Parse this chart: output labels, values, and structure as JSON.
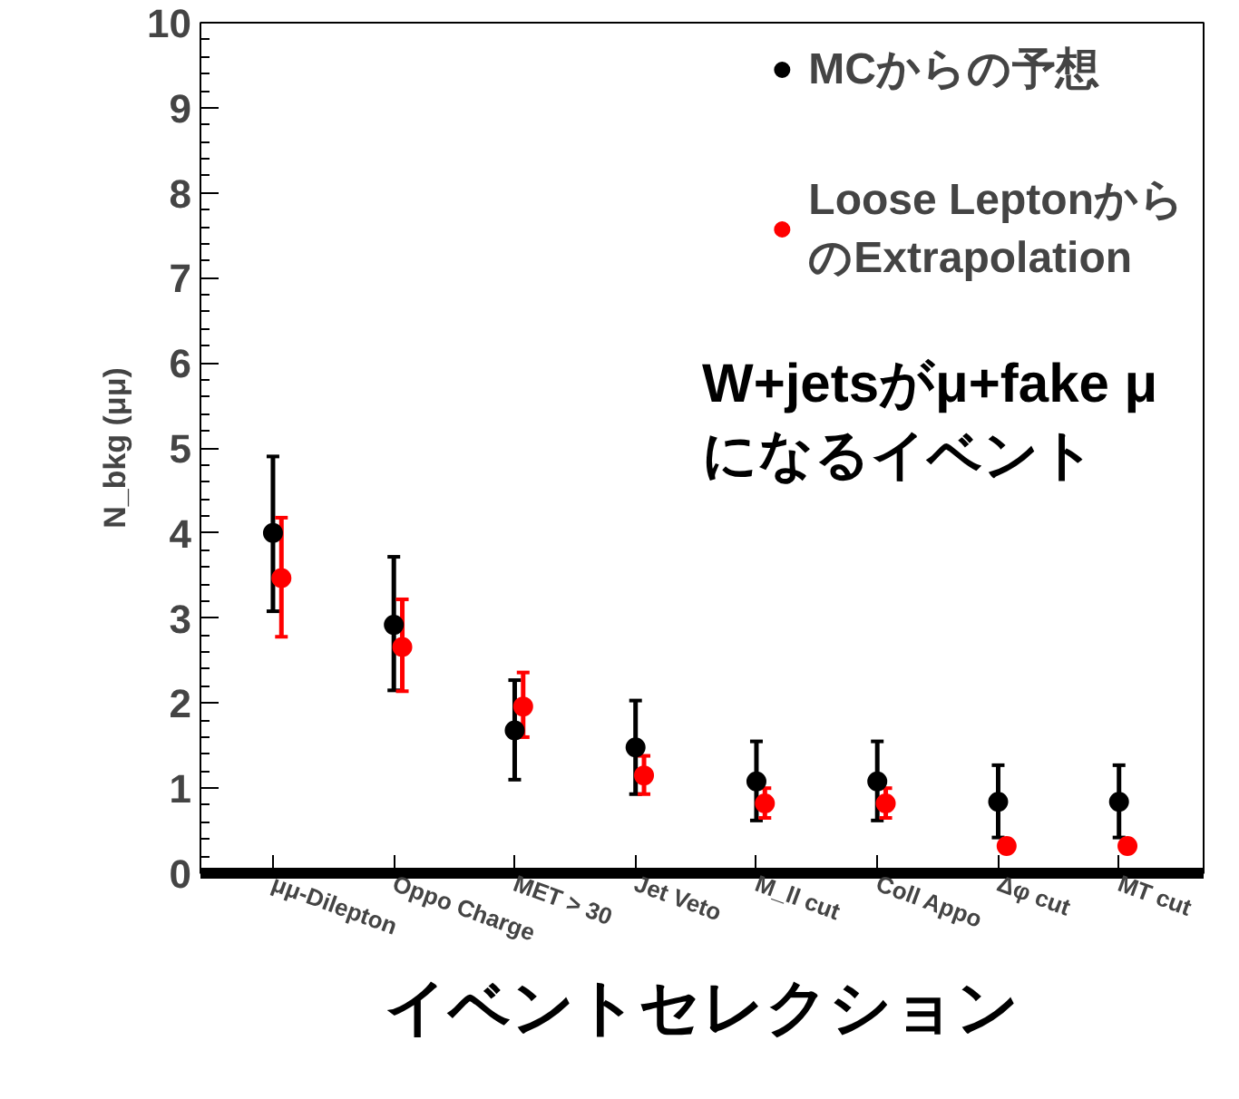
{
  "chart_data": {
    "type": "scatter",
    "xlabel": "イベントセレクション",
    "ylabel": "N_bkg (μμ)",
    "categories": [
      "μμ-Dilepton",
      "Oppo Charge",
      "MET > 30",
      "Jet Veto",
      "M_ll cut",
      "Coll Appo",
      "Δφ cut",
      "MT cut"
    ],
    "series": [
      {
        "name": "MCからの予想",
        "color": "#000000",
        "values": [
          4.0,
          2.92,
          1.68,
          1.48,
          1.08,
          1.08,
          0.84,
          0.84
        ],
        "errors": [
          [
            3.08,
            4.9
          ],
          [
            2.15,
            3.72
          ],
          [
            1.1,
            2.27
          ],
          [
            0.93,
            2.03
          ],
          [
            0.62,
            1.55
          ],
          [
            0.62,
            1.55
          ],
          [
            0.42,
            1.27
          ],
          [
            0.42,
            1.27
          ]
        ]
      },
      {
        "name": "Loose LeptonからのExtrapolation",
        "color": "#ff0000",
        "values": [
          3.47,
          2.66,
          1.96,
          1.15,
          0.82,
          0.82,
          0.32,
          0.32
        ],
        "errors": [
          [
            2.78,
            4.18
          ],
          [
            2.14,
            3.22
          ],
          [
            1.6,
            2.36
          ],
          [
            0.93,
            1.38
          ],
          [
            0.65,
            1.0
          ],
          [
            0.65,
            1.0
          ],
          null,
          null
        ]
      }
    ],
    "ylim": [
      0,
      10
    ],
    "yticks": [
      0,
      1,
      2,
      3,
      4,
      5,
      6,
      7,
      8,
      9,
      10
    ],
    "grid": false,
    "legend": "top right",
    "marker": "circle",
    "annotations": [
      "W+jetsがμ+fake μ\nになるイベント"
    ]
  }
}
